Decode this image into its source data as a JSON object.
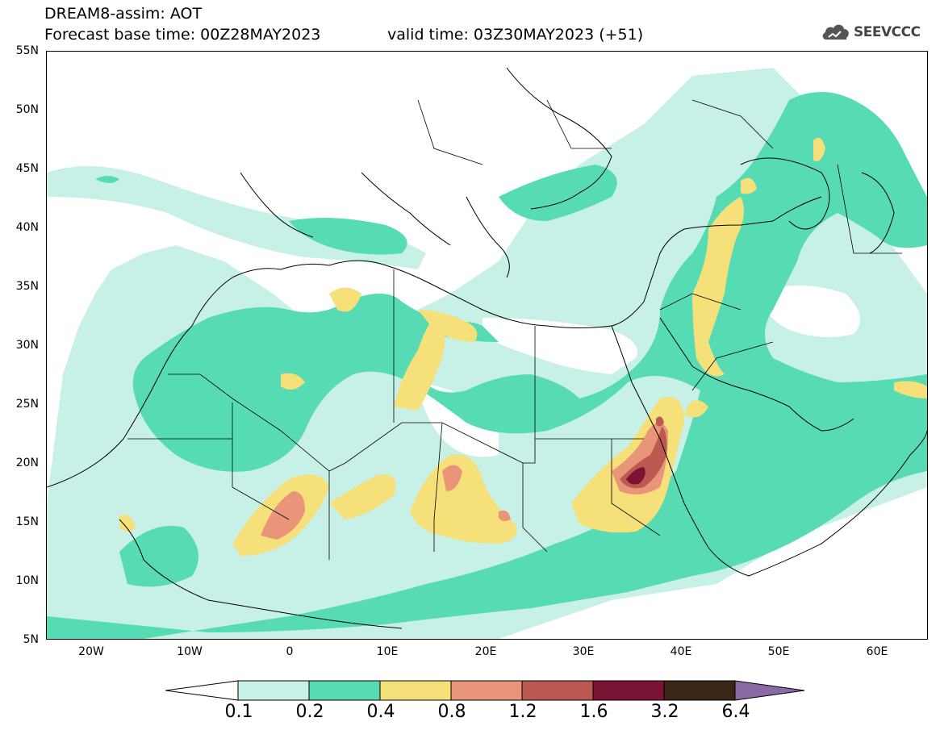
{
  "header": {
    "title_line1": "DREAM8-assim: AOT",
    "base_time": "Forecast base time: 00Z28MAY2023",
    "valid_time": "valid time: 03Z30MAY2023 (+51)"
  },
  "logo": {
    "text": "SEEVCCC",
    "icon": "cloud-icon"
  },
  "map": {
    "lat_labels": [
      "55N",
      "50N",
      "45N",
      "40N",
      "35N",
      "30N",
      "25N",
      "20N",
      "15N",
      "10N",
      "5N"
    ],
    "lon_labels": [
      "20W",
      "10W",
      "0",
      "10E",
      "20E",
      "30E",
      "40E",
      "50E",
      "60E"
    ],
    "lon_range": [
      -25,
      65
    ],
    "lat_range": [
      5,
      55
    ]
  },
  "colorbar": {
    "labels": [
      "0.1",
      "0.2",
      "0.4",
      "0.8",
      "1.2",
      "1.6",
      "3.2",
      "6.4"
    ],
    "colors": [
      "#c7f0e6",
      "#56dbb4",
      "#f5e079",
      "#e9957a",
      "#bc5a52",
      "#7a1434",
      "#3b2517",
      "#8a6aa5"
    ]
  }
}
